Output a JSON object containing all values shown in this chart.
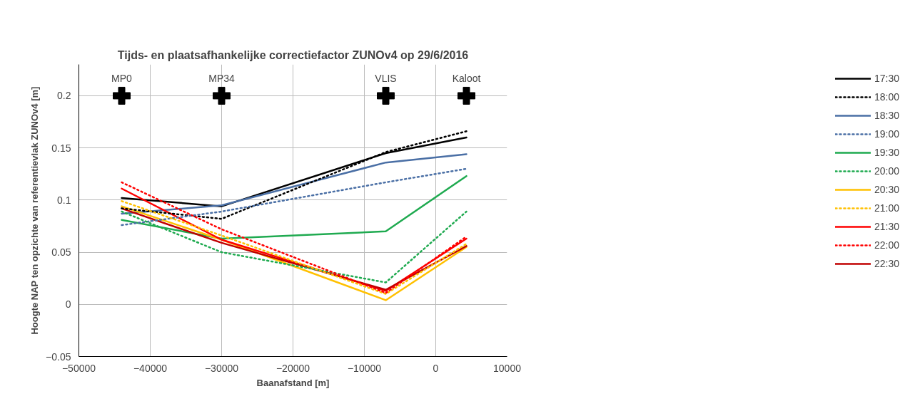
{
  "chart_data": {
    "type": "line",
    "title": "Tijds- en plaatsafhankelijke correctiefactor ZUNOv4 op 29/6/2016",
    "xlabel": "Baanafstand [m]",
    "ylabel": "Hoogte NAP ten opzichte van referentievlak ZUNOv4 [m]",
    "x": [
      -44000,
      -30000,
      -7000,
      4300
    ],
    "xlim": [
      -50000,
      10000
    ],
    "xticks": [
      -50000,
      -40000,
      -30000,
      -20000,
      -10000,
      0,
      10000
    ],
    "ylim": [
      -0.05,
      0.23
    ],
    "yticks": [
      -0.05,
      0,
      0.05,
      0.1,
      0.15,
      0.2
    ],
    "grid": true,
    "legend": "right",
    "series": [
      {
        "name": "17:30",
        "color": "#000000",
        "line_style": "solid",
        "values": [
          0.102,
          0.094,
          0.145,
          0.16
        ]
      },
      {
        "name": "18:00",
        "color": "#000000",
        "line_style": "dotted",
        "values": [
          0.092,
          0.082,
          0.146,
          0.166
        ]
      },
      {
        "name": "18:30",
        "color": "#4a6fa5",
        "line_style": "solid",
        "values": [
          0.087,
          0.095,
          0.136,
          0.144
        ]
      },
      {
        "name": "19:00",
        "color": "#4a6fa5",
        "line_style": "dotted",
        "values": [
          0.076,
          0.089,
          0.117,
          0.13
        ]
      },
      {
        "name": "19:30",
        "color": "#1faa50",
        "line_style": "solid",
        "values": [
          0.081,
          0.063,
          0.07,
          0.123
        ]
      },
      {
        "name": "20:00",
        "color": "#1faa50",
        "line_style": "dotted",
        "values": [
          0.089,
          0.05,
          0.021,
          0.089
        ]
      },
      {
        "name": "20:30",
        "color": "#ffc000",
        "line_style": "solid",
        "values": [
          0.094,
          0.062,
          0.004,
          0.055
        ]
      },
      {
        "name": "21:00",
        "color": "#ffc000",
        "line_style": "dotted",
        "values": [
          0.099,
          0.066,
          0.01,
          0.058
        ]
      },
      {
        "name": "21:30",
        "color": "#ff0000",
        "line_style": "solid",
        "values": [
          0.111,
          0.062,
          0.013,
          0.063
        ]
      },
      {
        "name": "22:00",
        "color": "#ff0000",
        "line_style": "dotted",
        "values": [
          0.117,
          0.072,
          0.011,
          0.065
        ]
      },
      {
        "name": "22:30",
        "color": "#c00000",
        "line_style": "solid",
        "values": [
          0.092,
          0.059,
          0.014,
          0.056
        ]
      },
      {
        "type": "scatter",
        "marker": "cross",
        "color": "#000000",
        "x": [
          -44000,
          -30000,
          -7000,
          4300
        ],
        "values": [
          0.2,
          0.2,
          0.2,
          0.2
        ]
      }
    ],
    "annotations": [
      {
        "text": "MP0",
        "x": -44000,
        "y": 0.2
      },
      {
        "text": "MP34",
        "x": -30000,
        "y": 0.2
      },
      {
        "text": "VLIS",
        "x": -7000,
        "y": 0.2
      },
      {
        "text": "Kaloot",
        "x": 4300,
        "y": 0.2
      }
    ]
  }
}
